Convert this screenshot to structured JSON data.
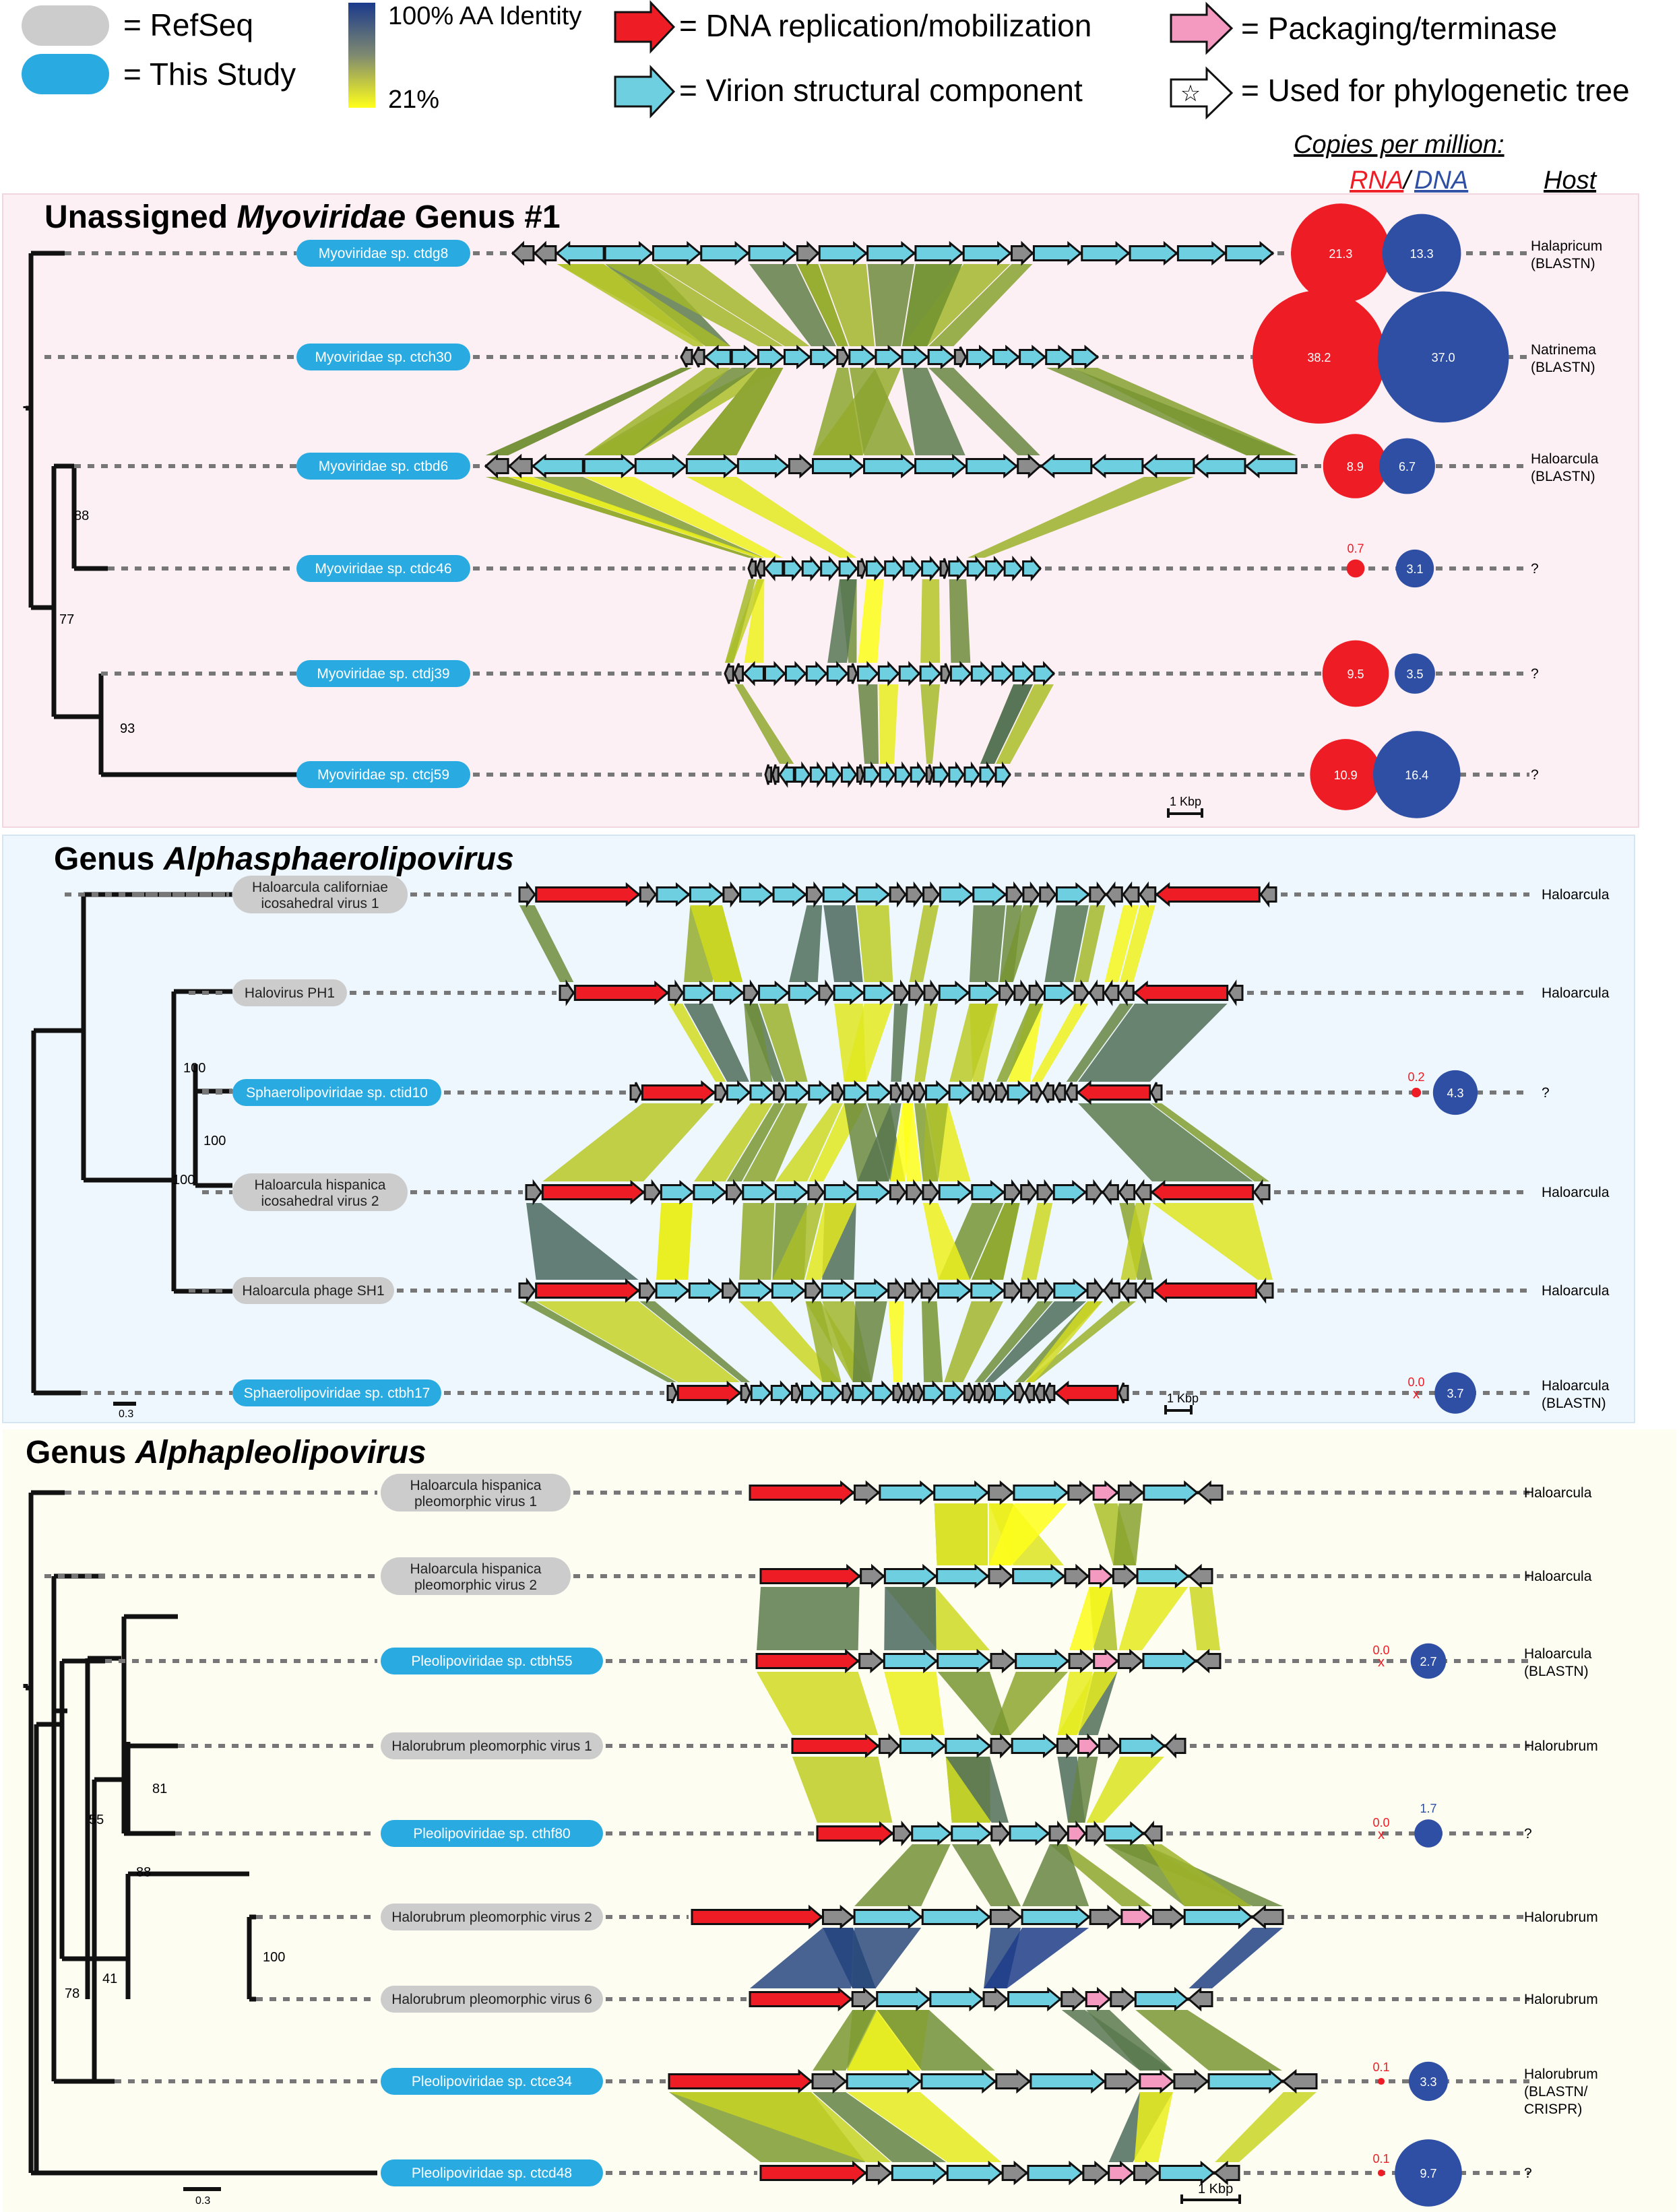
{
  "legend": {
    "refseq_label": "= RefSeq",
    "this_study_label": "= This Study",
    "identity_max": "100% AA Identity",
    "identity_min": "21%",
    "dna_replication": "= DNA replication/mobilization",
    "structural": "= Virion structural component",
    "packaging": "= Packaging/terminase",
    "phylo_tree": "= Used for phylogenetic tree"
  },
  "header": {
    "copies_per_million": "Copies per million:",
    "rna": "RNA",
    "slash": "/",
    "dna": "DNA",
    "host": "Host"
  },
  "colors": {
    "refseq": "#cccccc",
    "this_study": "#29abe2",
    "dna_arrow": "#ee1c25",
    "structural_arrow": "#6dcfe0",
    "packaging_arrow": "#f49ac1",
    "other_arrow": "#8c8c8c",
    "rna_circle": "#ee1c25",
    "dna_circle": "#2e4fa3",
    "identity_high": "#1b3a8c",
    "identity_low": "#ffff1a",
    "panel1_bg": "#fdf0f4",
    "panel2_bg": "#eef7fd",
    "panel3_bg": "#fdfdf1"
  },
  "panels": [
    {
      "title_pre": "Unassigned ",
      "title_ital": "Myoviridae",
      "title_post": " Genus #1",
      "scale_label": "1 Kbp",
      "bootstraps": [
        "88",
        "77",
        "93"
      ],
      "genomes": [
        {
          "name": "Myoviridae sp. ctdg8",
          "source": "this_study",
          "rna": "21.3",
          "dna": "13.3",
          "host": "Halapricum",
          "host2": "(BLASTN)"
        },
        {
          "name": "Myoviridae sp. ctch30",
          "source": "this_study",
          "rna": "38.2",
          "dna": "37.0",
          "host": "Natrinema",
          "host2": "(BLASTN)"
        },
        {
          "name": "Myoviridae sp. ctbd6",
          "source": "this_study",
          "rna": "8.9",
          "dna": "6.7",
          "host": "Haloarcula",
          "host2": "(BLASTN)"
        },
        {
          "name": "Myoviridae sp. ctdc46",
          "source": "this_study",
          "rna": "0.7",
          "dna": "3.1",
          "host": "?",
          "host2": ""
        },
        {
          "name": "Myoviridae sp. ctdj39",
          "source": "this_study",
          "rna": "9.5",
          "dna": "3.5",
          "host": "?",
          "host2": ""
        },
        {
          "name": "Myoviridae sp. ctcj59",
          "source": "this_study",
          "rna": "10.9",
          "dna": "16.4",
          "host": "?",
          "host2": ""
        }
      ]
    },
    {
      "title_pre": "Genus ",
      "title_ital": "Alphasphaerolipovirus",
      "title_post": "",
      "scale_label": "1 Kbp",
      "tree_scale": "0.3",
      "bootstraps": [
        "100",
        "100",
        "100"
      ],
      "genomes": [
        {
          "name": "Haloarcula californiae",
          "name2": "icosahedral virus 1",
          "source": "refseq",
          "host": "Haloarcula",
          "host2": ""
        },
        {
          "name": "Halovirus PH1",
          "source": "refseq",
          "host": "Haloarcula",
          "host2": ""
        },
        {
          "name": "Sphaerolipoviridae sp. ctid10",
          "source": "this_study",
          "rna": "0.2",
          "dna": "4.3",
          "host": "?",
          "host2": ""
        },
        {
          "name": "Haloarcula hispanica",
          "name2": "icosahedral virus 2",
          "source": "refseq",
          "host": "Haloarcula",
          "host2": ""
        },
        {
          "name": "Haloarcula phage SH1",
          "source": "refseq",
          "host": "Haloarcula",
          "host2": ""
        },
        {
          "name": "Sphaerolipoviridae sp. ctbh17",
          "source": "this_study",
          "rna": "0.0",
          "dna": "3.7",
          "host": "Haloarcula",
          "host2": "(BLASTN)"
        }
      ]
    },
    {
      "title_pre": "Genus ",
      "title_ital": "Alphapleolipovirus",
      "title_post": "",
      "scale_label": "1 Kbp",
      "tree_scale": "0.3",
      "bootstraps": [
        "81",
        "55",
        "88",
        "100",
        "41",
        "78"
      ],
      "genomes": [
        {
          "name": "Haloarcula hispanica",
          "name2": "pleomorphic virus 1",
          "source": "refseq",
          "host": "Haloarcula",
          "host2": ""
        },
        {
          "name": "Haloarcula hispanica",
          "name2": "pleomorphic virus 2",
          "source": "refseq",
          "host": "Haloarcula",
          "host2": ""
        },
        {
          "name": "Pleolipoviridae sp. ctbh55",
          "source": "this_study",
          "rna": "0.0",
          "dna": "2.7",
          "host": "Haloarcula",
          "host2": "(BLASTN)"
        },
        {
          "name": "Halorubrum pleomorphic virus 1",
          "source": "refseq",
          "host": "Halorubrum",
          "host2": ""
        },
        {
          "name": "Pleolipoviridae sp. cthf80",
          "source": "this_study",
          "rna": "0.0",
          "dna": "1.7",
          "host": "?",
          "host2": ""
        },
        {
          "name": "Halorubrum pleomorphic virus 2",
          "source": "refseq",
          "host": "Halorubrum",
          "host2": ""
        },
        {
          "name": "Halorubrum pleomorphic virus 6",
          "source": "refseq",
          "host": "Halorubrum",
          "host2": ""
        },
        {
          "name": "Pleolipoviridae sp. ctce34",
          "source": "this_study",
          "rna": "0.1",
          "dna": "3.3",
          "host": "Halorubrum",
          "host2": "(BLASTN/",
          "host3": "CRISPR)"
        },
        {
          "name": "Pleolipoviridae sp. ctcd48",
          "source": "this_study",
          "rna": "0.1",
          "dna": "9.7",
          "host": "?",
          "host2": ""
        }
      ]
    }
  ]
}
